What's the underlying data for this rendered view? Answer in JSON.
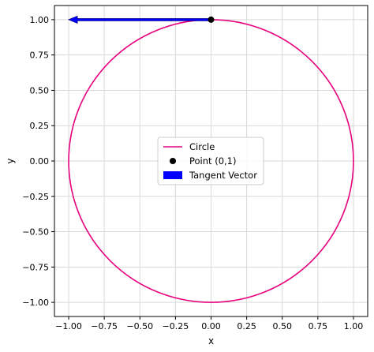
{
  "chart_data": {
    "type": "line",
    "title": "",
    "xlabel": "x",
    "ylabel": "y",
    "xlim": [
      -1.1,
      1.1
    ],
    "ylim": [
      -1.1,
      1.1
    ],
    "grid": true,
    "legend_position": "center",
    "x_ticks": [
      -1.0,
      -0.75,
      -0.5,
      -0.25,
      0.0,
      0.25,
      0.5,
      0.75,
      1.0
    ],
    "x_tick_labels": [
      "−1.00",
      "−0.75",
      "−0.50",
      "−0.25",
      "0.00",
      "0.25",
      "0.50",
      "0.75",
      "1.00"
    ],
    "y_ticks": [
      1.0,
      0.75,
      0.5,
      0.25,
      0.0,
      -0.25,
      -0.5,
      -0.75,
      -1.0
    ],
    "y_tick_labels": [
      "1.00",
      "0.75",
      "0.50",
      "0.25",
      "0.00",
      "−0.25",
      "−0.50",
      "−0.75",
      "−1.00"
    ],
    "series": [
      {
        "name": "Circle",
        "kind": "line",
        "color": "#e6007e",
        "center": [
          0,
          0
        ],
        "radius": 1
      },
      {
        "name": "Point (0,1)",
        "kind": "scatter",
        "color": "#000000",
        "x": [
          0
        ],
        "y": [
          1
        ]
      },
      {
        "name": "Tangent Vector",
        "kind": "vector",
        "color": "#0000ff",
        "origin": [
          0,
          1
        ],
        "vector": [
          -1,
          0
        ]
      }
    ]
  }
}
